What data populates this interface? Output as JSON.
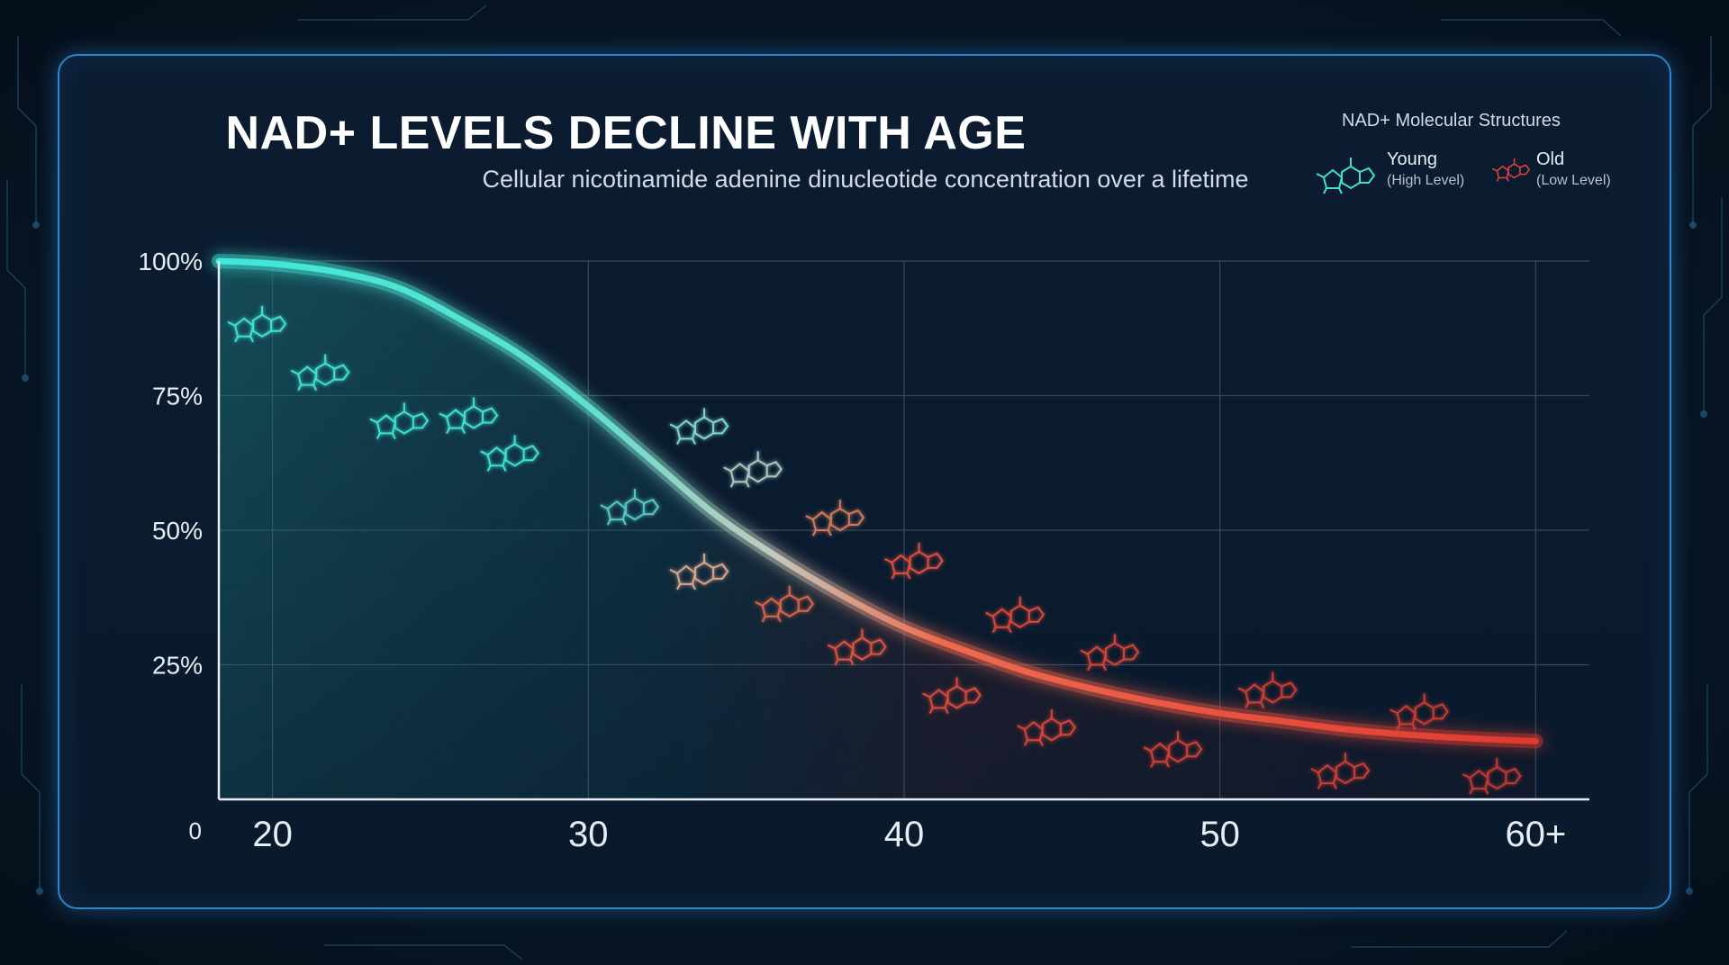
{
  "title": "NAD+ LEVELS DECLINE WITH AGE",
  "subtitle": "Cellular nicotinamide adenine dinucleotide concentration over a lifetime",
  "legend": {
    "title": "NAD+ Molecular Structures",
    "items": [
      {
        "label": "Young",
        "sub": "(High Level)",
        "color": "#3fe0d0",
        "icon": "molecule-icon"
      },
      {
        "label": "Old",
        "sub": "(Low Level)",
        "color": "#e0453a",
        "icon": "molecule-icon"
      }
    ]
  },
  "colors": {
    "young": "#3fe0d0",
    "old": "#e8493c",
    "grid": "#3a4a5e",
    "axis": "#e8eef5"
  },
  "chart_data": {
    "type": "line",
    "title": "NAD+ LEVELS DECLINE WITH AGE",
    "subtitle": "Cellular nicotinamide adenine dinucleotide concentration over a lifetime",
    "xlabel": "",
    "ylabel": "",
    "x_ticks": [
      {
        "value": 20,
        "label": "20"
      },
      {
        "value": 30,
        "label": "30"
      },
      {
        "value": 40,
        "label": "40"
      },
      {
        "value": 50,
        "label": "50"
      },
      {
        "value": 60,
        "label": "60+"
      }
    ],
    "y_ticks": [
      {
        "value": 0,
        "label": "0"
      },
      {
        "value": 25,
        "label": "25%"
      },
      {
        "value": 50,
        "label": "50%"
      },
      {
        "value": 75,
        "label": "75%"
      },
      {
        "value": 100,
        "label": "100%"
      }
    ],
    "xlim": [
      18.3,
      61.7
    ],
    "ylim": [
      0,
      100
    ],
    "grid": true,
    "legend_position": "top-right",
    "series": [
      {
        "x": [
          18.3,
          20,
          22,
          24,
          26,
          28,
          30,
          32,
          34,
          36,
          38,
          40,
          42,
          44,
          46,
          48,
          50,
          52,
          54,
          56,
          58,
          60
        ],
        "values": [
          100,
          99.5,
          98,
          95,
          89,
          82,
          73,
          63,
          53,
          45,
          38,
          32,
          27.5,
          23.5,
          20.5,
          18,
          16,
          14.5,
          13,
          12,
          11.3,
          10.8
        ]
      }
    ]
  },
  "molecules": [
    {
      "age": 19.5,
      "level": 89,
      "color": "#3fe0d0"
    },
    {
      "age": 21.5,
      "level": 80,
      "color": "#3fe0d0"
    },
    {
      "age": 24,
      "level": 71,
      "color": "#3fe0d0"
    },
    {
      "age": 26.2,
      "level": 72,
      "color": "#3fe0d0"
    },
    {
      "age": 27.5,
      "level": 65,
      "color": "#3fe0d0"
    },
    {
      "age": 31.3,
      "level": 55,
      "color": "#55c8c4"
    },
    {
      "age": 33.5,
      "level": 70,
      "color": "#7ed6d0"
    },
    {
      "age": 35.2,
      "level": 62,
      "color": "#a8c8c0"
    },
    {
      "age": 33.5,
      "level": 43,
      "color": "#d9a58a"
    },
    {
      "age": 37.8,
      "level": 53,
      "color": "#d07a5a"
    },
    {
      "age": 36.2,
      "level": 37,
      "color": "#d8664c"
    },
    {
      "age": 38.5,
      "level": 29,
      "color": "#d9553f"
    },
    {
      "age": 40.3,
      "level": 45,
      "color": "#dd5040"
    },
    {
      "age": 41.5,
      "level": 20,
      "color": "#d84a3c"
    },
    {
      "age": 43.5,
      "level": 35,
      "color": "#d8483a"
    },
    {
      "age": 44.5,
      "level": 14,
      "color": "#d44438"
    },
    {
      "age": 46.5,
      "level": 28,
      "color": "#d44438"
    },
    {
      "age": 48.5,
      "level": 10,
      "color": "#cf4036"
    },
    {
      "age": 51.5,
      "level": 21,
      "color": "#cc3e35"
    },
    {
      "age": 53.8,
      "level": 6,
      "color": "#c93c34"
    },
    {
      "age": 56.3,
      "level": 17,
      "color": "#c63a33"
    },
    {
      "age": 58.6,
      "level": 5,
      "color": "#c23832"
    }
  ]
}
